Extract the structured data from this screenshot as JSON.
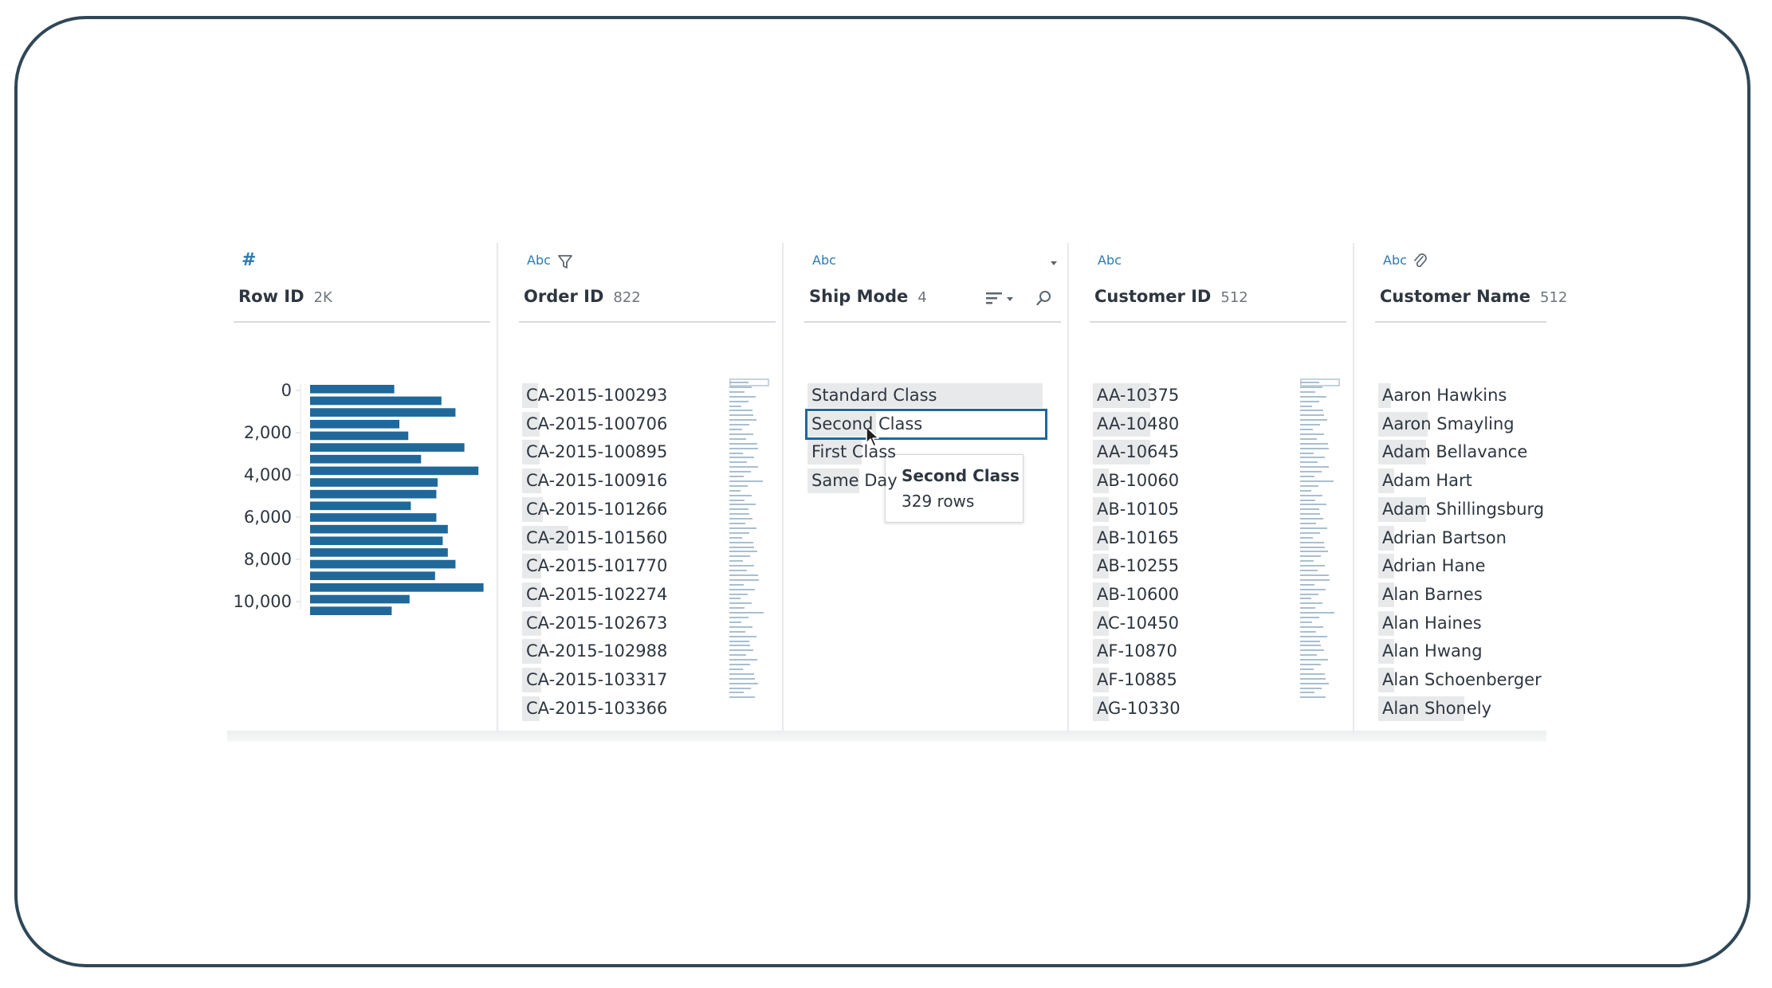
{
  "columns": {
    "row_id": {
      "type_icon": "#",
      "title": "Row ID",
      "count": "2K"
    },
    "order_id": {
      "type_icon": "Abc",
      "title": "Order ID",
      "count": "822",
      "values": [
        "CA-2015-100293",
        "CA-2015-100706",
        "CA-2015-100895",
        "CA-2015-100916",
        "CA-2015-101266",
        "CA-2015-101560",
        "CA-2015-101770",
        "CA-2015-102274",
        "CA-2015-102673",
        "CA-2015-102988",
        "CA-2015-103317",
        "CA-2015-103366"
      ]
    },
    "ship_mode": {
      "type_icon": "Abc",
      "title": "Ship Mode",
      "count": "4",
      "values": [
        "Standard Class",
        "Second Class",
        "First Class",
        "Same Day"
      ],
      "selected": "Second Class"
    },
    "customer_id": {
      "type_icon": "Abc",
      "title": "Customer ID",
      "count": "512",
      "values": [
        "AA-10375",
        "AA-10480",
        "AA-10645",
        "AB-10060",
        "AB-10105",
        "AB-10165",
        "AB-10255",
        "AB-10600",
        "AC-10450",
        "AF-10870",
        "AF-10885",
        "AG-10330"
      ]
    },
    "customer_name": {
      "type_icon": "Abc",
      "title": "Customer Name",
      "count": "512",
      "values": [
        "Aaron Hawkins",
        "Aaron Smayling",
        "Adam Bellavance",
        "Adam Hart",
        "Adam Shillingsburg",
        "Adrian Bartson",
        "Adrian Hane",
        "Alan Barnes",
        "Alan Haines",
        "Alan Hwang",
        "Alan Schoenberger",
        "Alan Shonely"
      ]
    }
  },
  "tooltip": {
    "title": "Second Class",
    "rows": "329 rows"
  },
  "chart_data": {
    "type": "bar",
    "orientation": "horizontal",
    "title": "",
    "xlabel": "",
    "ylabel": "",
    "y_tick_labels": [
      "0",
      "2,000",
      "4,000",
      "6,000",
      "8,000",
      "10,000"
    ],
    "y_ticks": [
      0,
      2000,
      4000,
      6000,
      8000,
      10000
    ],
    "ylim": [
      0,
      10000
    ],
    "values": [
      66,
      103,
      114,
      70,
      77,
      121,
      87,
      132,
      100,
      99,
      79,
      99,
      108,
      104,
      108,
      114,
      98,
      136,
      78,
      64
    ],
    "color": "#1f6899"
  },
  "colors": {
    "accent": "#2b7bb0",
    "bar": "#1f6899",
    "frame": "#2f4756",
    "selection": "#1f6899"
  }
}
